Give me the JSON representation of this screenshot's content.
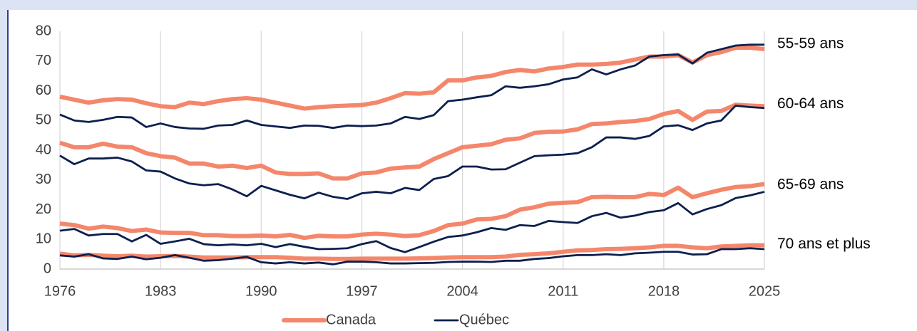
{
  "chart_data": {
    "type": "line",
    "x": [
      1976,
      1977,
      1978,
      1979,
      1980,
      1981,
      1982,
      1983,
      1984,
      1985,
      1986,
      1987,
      1988,
      1989,
      1990,
      1991,
      1992,
      1993,
      1994,
      1995,
      1996,
      1997,
      1998,
      1999,
      2000,
      2001,
      2002,
      2003,
      2004,
      2005,
      2006,
      2007,
      2008,
      2009,
      2010,
      2011,
      2012,
      2013,
      2014,
      2015,
      2016,
      2017,
      2018,
      2019,
      2020,
      2021,
      2022,
      2023,
      2024,
      2025
    ],
    "xlim": [
      1976,
      2025
    ],
    "xticks": [
      1976,
      1983,
      1990,
      1997,
      2004,
      2011,
      2018,
      2025
    ],
    "ylim": [
      0,
      80
    ],
    "yticks": [
      0,
      10,
      20,
      30,
      40,
      50,
      60,
      70,
      80
    ],
    "grid": "x",
    "legend": "bottom",
    "group_labels": [
      "55-59 ans",
      "60-64 ans",
      "65-69 ans",
      "70 ans et plus"
    ],
    "series": [
      {
        "name": "Canada",
        "color": "#f4876b",
        "width": 6,
        "groups": [
          [
            58,
            57,
            56,
            56.8,
            57.2,
            57,
            55.8,
            54.8,
            54.5,
            56,
            55.5,
            56.5,
            57.2,
            57.5,
            57,
            56,
            55,
            54,
            54.5,
            54.8,
            55,
            55.2,
            56,
            57.5,
            59.2,
            59,
            59.5,
            63.5,
            63.5,
            64.5,
            65,
            66.3,
            67,
            66.5,
            67.5,
            68,
            68.8,
            68.8,
            69,
            69.5,
            70.5,
            71.5,
            71.5,
            72,
            69.5,
            72,
            73,
            74.5,
            74.5,
            74
          ],
          [
            42.5,
            41,
            41,
            42.2,
            41.2,
            41,
            39,
            38,
            37.5,
            35.5,
            35.5,
            34.5,
            34.8,
            34,
            34.8,
            32.5,
            32,
            32,
            32.2,
            30.5,
            30.5,
            32.2,
            32.5,
            33.8,
            34.2,
            34.5,
            37,
            39,
            41,
            41.5,
            42,
            43.5,
            44,
            45.8,
            46.2,
            46.3,
            47,
            48.8,
            49,
            49.5,
            49.8,
            50.5,
            52.2,
            53.2,
            50.2,
            53,
            53.2,
            55.3,
            55,
            54.8
          ],
          [
            15.3,
            14.8,
            13.6,
            14.3,
            13.8,
            12.8,
            13.3,
            12.3,
            12.2,
            12.2,
            11.4,
            11.4,
            11.1,
            11.1,
            11.3,
            11,
            11.5,
            10.5,
            11.2,
            11,
            11,
            11.6,
            11.9,
            11.6,
            11.1,
            11.4,
            12.8,
            14.8,
            15.3,
            16.7,
            16.9,
            17.8,
            20,
            20.8,
            22,
            22.3,
            22.5,
            24.2,
            24.3,
            24.2,
            24.2,
            25.3,
            24.9,
            27.4,
            24.2,
            25.5,
            26.7,
            27.6,
            27.9,
            28.6
          ],
          [
            5.2,
            4.6,
            4.8,
            4.5,
            4.3,
            4.5,
            4.2,
            4.3,
            4.4,
            4.2,
            3.9,
            3.9,
            3.9,
            4,
            4,
            4,
            3.8,
            3.5,
            3.5,
            3.4,
            3.4,
            3.5,
            3.5,
            3.5,
            3.5,
            3.6,
            3.7,
            3.9,
            4,
            4,
            4,
            4.2,
            4.8,
            5,
            5.3,
            5.8,
            6.3,
            6.4,
            6.7,
            6.8,
            7,
            7.3,
            7.8,
            7.8,
            7.3,
            7,
            7.6,
            7.8,
            8,
            8
          ]
        ]
      },
      {
        "name": "Québec",
        "color": "#0d1f4e",
        "width": 2.8,
        "groups": [
          [
            52,
            50,
            49.5,
            50.2,
            51.2,
            51,
            47.8,
            49,
            47.8,
            47.3,
            47.2,
            48.3,
            48.5,
            50,
            48.5,
            48,
            47.5,
            48.3,
            48.2,
            47.5,
            48.3,
            48.1,
            48.3,
            49,
            51.2,
            50.5,
            51.8,
            56.5,
            57,
            57.8,
            58.5,
            61.5,
            61,
            61.5,
            62.2,
            63.8,
            64.5,
            67.2,
            65.5,
            67.2,
            68.5,
            71.5,
            72,
            72.2,
            69.2,
            72.8,
            74,
            75.2,
            75.5,
            75.5
          ],
          [
            38.2,
            35.3,
            37.2,
            37.2,
            37.5,
            36.2,
            33.2,
            32.8,
            30.5,
            28.8,
            28.2,
            28.6,
            26.8,
            24.5,
            28,
            26.5,
            25,
            23.8,
            25.7,
            24.3,
            23.6,
            25.5,
            26,
            25.5,
            27.3,
            26.6,
            30.3,
            31.3,
            34.5,
            34.5,
            33.5,
            33.6,
            35.8,
            38,
            38.3,
            38.5,
            39,
            41,
            44.3,
            44.3,
            43.8,
            44.8,
            48,
            48.4,
            46.8,
            49,
            50,
            55,
            54.5,
            54.2
          ],
          [
            12.9,
            13.5,
            11.3,
            11.8,
            11.8,
            9.3,
            11.5,
            8.5,
            9.3,
            10.2,
            8.4,
            8,
            8.3,
            8,
            8.5,
            7.4,
            8.4,
            7.5,
            6.7,
            6.8,
            7,
            8.4,
            9.4,
            7.1,
            5.7,
            7.4,
            9.2,
            10.8,
            11.3,
            12.4,
            13.8,
            13.2,
            14.8,
            14.5,
            16.2,
            15.8,
            15.5,
            17.8,
            18.9,
            17.3,
            18,
            19.2,
            19.8,
            22.2,
            18.4,
            20.2,
            21.5,
            23.9,
            24.8,
            26
          ],
          [
            4.6,
            4.2,
            5,
            3.6,
            3.4,
            4.2,
            3.3,
            3.8,
            4.7,
            3.8,
            2.8,
            3,
            3.5,
            4.1,
            2.3,
            1.9,
            2.3,
            1.9,
            2.2,
            1.6,
            2.5,
            2.5,
            2.3,
            1.9,
            1.9,
            2,
            2.1,
            2.4,
            2.5,
            2.5,
            2.4,
            2.8,
            2.8,
            3.4,
            3.7,
            4.3,
            4.7,
            4.7,
            5,
            4.7,
            5.3,
            5.5,
            5.8,
            5.8,
            4.9,
            5,
            6.7,
            6.7,
            7,
            6.7
          ]
        ]
      }
    ]
  }
}
